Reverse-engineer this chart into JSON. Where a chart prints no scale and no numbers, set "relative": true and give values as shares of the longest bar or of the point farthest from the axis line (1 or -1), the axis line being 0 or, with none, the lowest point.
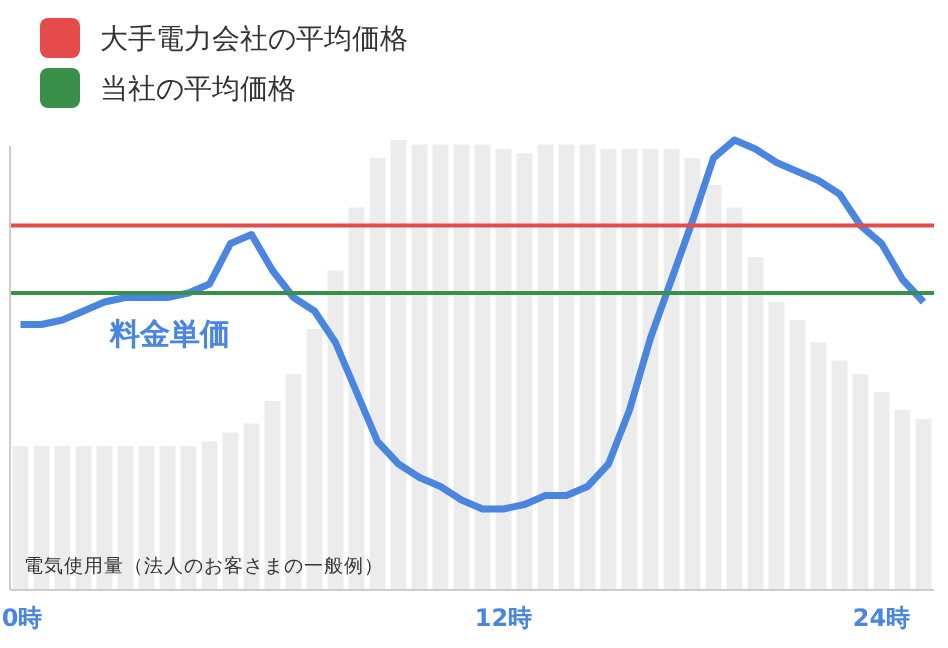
{
  "chart_data": {
    "type": "bar",
    "relative": true,
    "legend": "top left",
    "categories": [
      "0時",
      null,
      null,
      null,
      null,
      null,
      null,
      null,
      null,
      null,
      null,
      null,
      null,
      null,
      null,
      null,
      null,
      null,
      null,
      null,
      null,
      null,
      null,
      "12時",
      null,
      null,
      null,
      null,
      null,
      null,
      null,
      null,
      null,
      null,
      null,
      null,
      null,
      null,
      null,
      null,
      null,
      "24時",
      null,
      null
    ],
    "series": [
      {
        "name": "電気使用量（法人のお客さまの一般例）",
        "color": "#ececec",
        "values": [
          0.32,
          0.32,
          0.32,
          0.32,
          0.32,
          0.32,
          0.32,
          0.32,
          0.32,
          0.33,
          0.35,
          0.37,
          0.42,
          0.48,
          0.58,
          0.71,
          0.85,
          0.96,
          1.0,
          0.99,
          0.99,
          0.99,
          0.99,
          0.98,
          0.97,
          0.99,
          0.99,
          0.99,
          0.98,
          0.98,
          0.98,
          0.98,
          0.96,
          0.9,
          0.85,
          0.74,
          0.64,
          0.6,
          0.55,
          0.51,
          0.48,
          0.44,
          0.4,
          0.38
        ]
      },
      {
        "name": "料金単価",
        "type": "line",
        "color": "#4a86e0",
        "values": [
          0.59,
          0.59,
          0.6,
          0.62,
          0.64,
          0.65,
          0.65,
          0.65,
          0.66,
          0.68,
          0.77,
          0.79,
          0.71,
          0.65,
          0.62,
          0.55,
          0.44,
          0.33,
          0.28,
          0.25,
          0.23,
          0.2,
          0.18,
          0.18,
          0.19,
          0.21,
          0.21,
          0.23,
          0.28,
          0.4,
          0.56,
          0.69,
          0.82,
          0.96,
          1.0,
          0.98,
          0.95,
          0.93,
          0.91,
          0.88,
          0.81,
          0.77,
          0.69,
          0.64
        ]
      }
    ],
    "ref_lines": [
      {
        "axis": "y",
        "value": 0.81,
        "label": "大手電力会社の平均価格",
        "color": "#e54b4b"
      },
      {
        "axis": "y",
        "value": 0.66,
        "label": "当社の平均価格",
        "color": "#3a8f4a"
      }
    ]
  }
}
